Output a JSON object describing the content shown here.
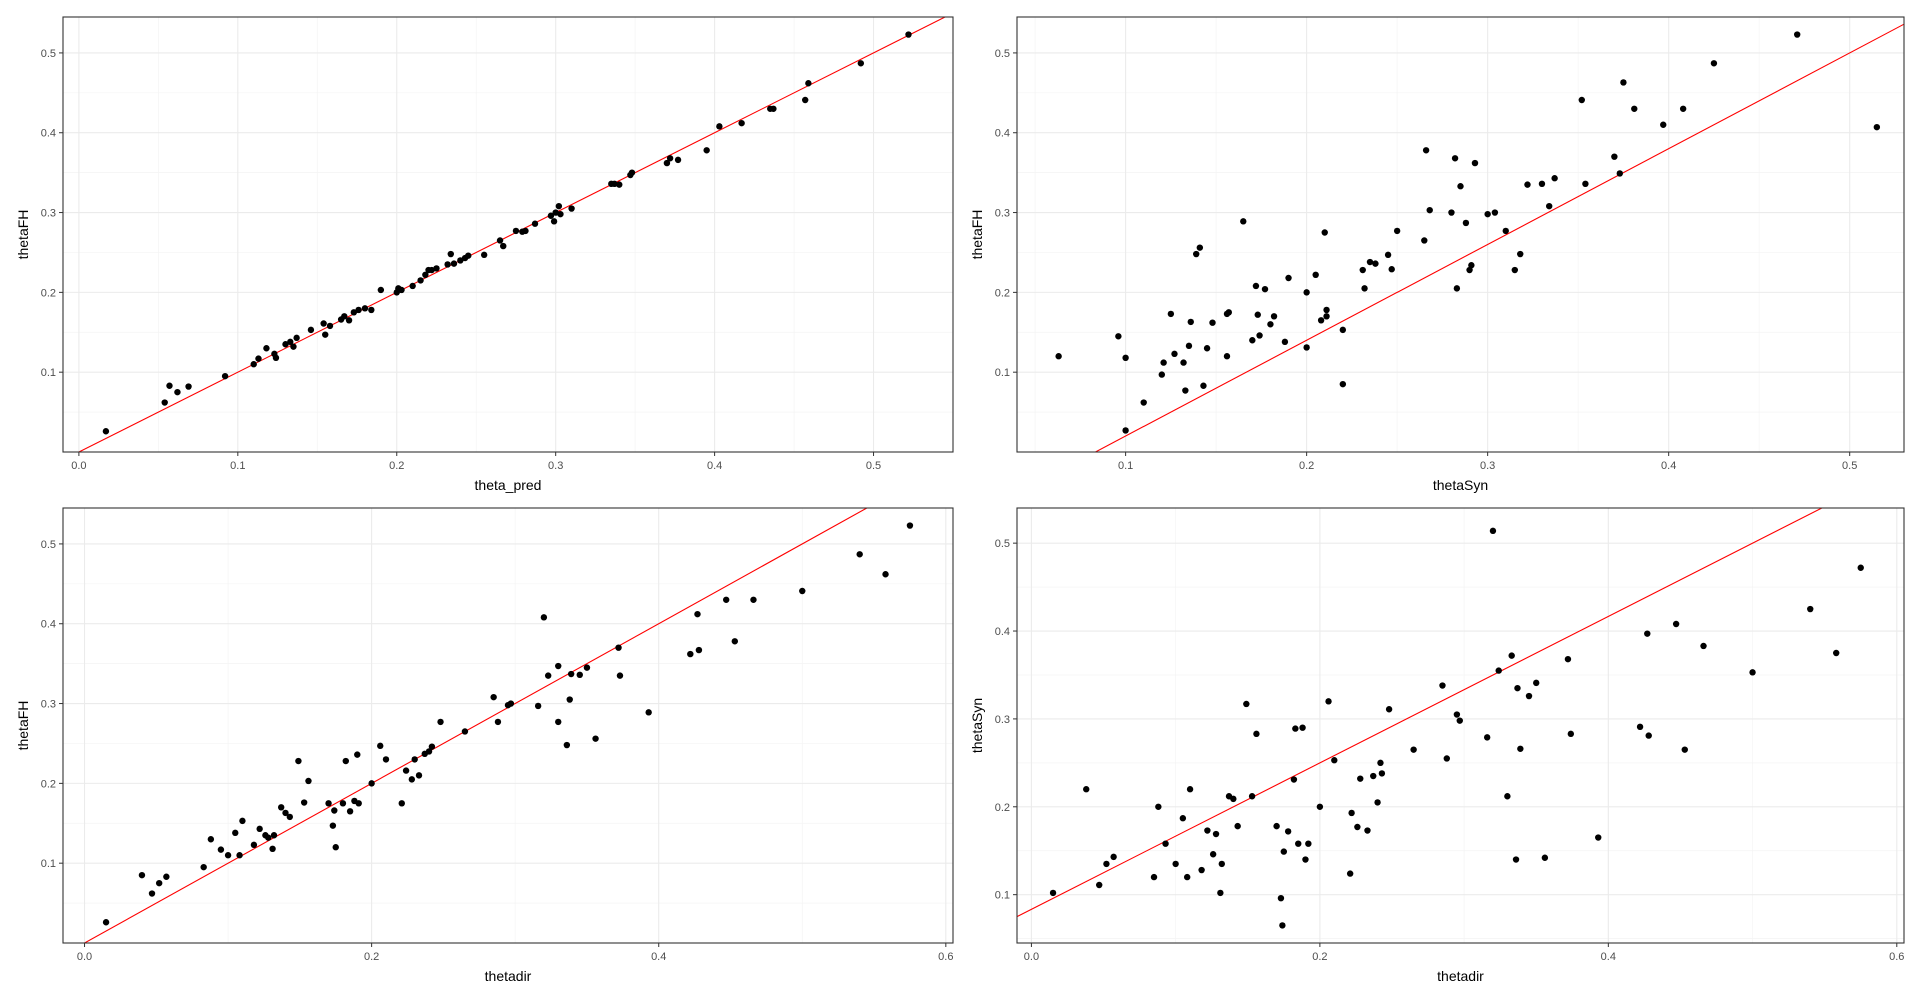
{
  "chart_data": [
    {
      "type": "scatter",
      "xlabel": "theta_pred",
      "ylabel": "thetaFH",
      "xlim": [
        -0.01,
        0.55
      ],
      "ylim": [
        0.0,
        0.545
      ],
      "xticks": [
        0.0,
        0.1,
        0.2,
        0.3,
        0.4,
        0.5
      ],
      "xtick_labels": [
        "0.0",
        "0.1",
        "0.2",
        "0.3",
        "0.4",
        "0.5"
      ],
      "yticks": [
        0.1,
        0.2,
        0.3,
        0.4,
        0.5
      ],
      "ytick_labels": [
        "0.1",
        "0.2",
        "0.3",
        "0.4",
        "0.5"
      ],
      "ref_line": {
        "intercept": 0,
        "slope": 1,
        "color": "#ff0000"
      },
      "grid": true,
      "points": [
        [
          0.017,
          0.026
        ],
        [
          0.054,
          0.062
        ],
        [
          0.057,
          0.083
        ],
        [
          0.062,
          0.075
        ],
        [
          0.069,
          0.082
        ],
        [
          0.092,
          0.095
        ],
        [
          0.11,
          0.11
        ],
        [
          0.113,
          0.117
        ],
        [
          0.118,
          0.13
        ],
        [
          0.123,
          0.123
        ],
        [
          0.124,
          0.118
        ],
        [
          0.13,
          0.135
        ],
        [
          0.133,
          0.138
        ],
        [
          0.135,
          0.132
        ],
        [
          0.137,
          0.143
        ],
        [
          0.146,
          0.153
        ],
        [
          0.154,
          0.161
        ],
        [
          0.155,
          0.147
        ],
        [
          0.158,
          0.158
        ],
        [
          0.165,
          0.166
        ],
        [
          0.167,
          0.17
        ],
        [
          0.17,
          0.165
        ],
        [
          0.173,
          0.175
        ],
        [
          0.176,
          0.178
        ],
        [
          0.18,
          0.18
        ],
        [
          0.184,
          0.178
        ],
        [
          0.19,
          0.203
        ],
        [
          0.2,
          0.2
        ],
        [
          0.201,
          0.205
        ],
        [
          0.203,
          0.203
        ],
        [
          0.21,
          0.208
        ],
        [
          0.215,
          0.215
        ],
        [
          0.218,
          0.222
        ],
        [
          0.22,
          0.228
        ],
        [
          0.222,
          0.228
        ],
        [
          0.225,
          0.23
        ],
        [
          0.232,
          0.235
        ],
        [
          0.234,
          0.248
        ],
        [
          0.236,
          0.236
        ],
        [
          0.24,
          0.24
        ],
        [
          0.243,
          0.243
        ],
        [
          0.245,
          0.246
        ],
        [
          0.255,
          0.247
        ],
        [
          0.265,
          0.265
        ],
        [
          0.267,
          0.258
        ],
        [
          0.275,
          0.277
        ],
        [
          0.279,
          0.276
        ],
        [
          0.281,
          0.277
        ],
        [
          0.287,
          0.286
        ],
        [
          0.297,
          0.296
        ],
        [
          0.299,
          0.289
        ],
        [
          0.3,
          0.3
        ],
        [
          0.302,
          0.308
        ],
        [
          0.303,
          0.298
        ],
        [
          0.31,
          0.305
        ],
        [
          0.335,
          0.336
        ],
        [
          0.337,
          0.336
        ],
        [
          0.34,
          0.335
        ],
        [
          0.347,
          0.347
        ],
        [
          0.348,
          0.35
        ],
        [
          0.37,
          0.362
        ],
        [
          0.372,
          0.368
        ],
        [
          0.377,
          0.366
        ],
        [
          0.395,
          0.378
        ],
        [
          0.403,
          0.408
        ],
        [
          0.417,
          0.412
        ],
        [
          0.435,
          0.43
        ],
        [
          0.437,
          0.43
        ],
        [
          0.457,
          0.441
        ],
        [
          0.459,
          0.462
        ],
        [
          0.492,
          0.487
        ],
        [
          0.522,
          0.523
        ]
      ]
    },
    {
      "type": "scatter",
      "xlabel": "thetaSyn",
      "ylabel": "thetaFH",
      "xlim": [
        0.04,
        0.53
      ],
      "ylim": [
        0.0,
        0.545
      ],
      "xticks": [
        0.1,
        0.2,
        0.3,
        0.4,
        0.5
      ],
      "xtick_labels": [
        "0.1",
        "0.2",
        "0.3",
        "0.4",
        "0.5"
      ],
      "yticks": [
        0.1,
        0.2,
        0.3,
        0.4,
        0.5
      ],
      "ytick_labels": [
        "0.1",
        "0.2",
        "0.3",
        "0.4",
        "0.5"
      ],
      "ref_line": {
        "intercept": -0.1,
        "slope": 1.2,
        "color": "#ff0000"
      },
      "grid": true,
      "points": [
        [
          0.063,
          0.12
        ],
        [
          0.096,
          0.145
        ],
        [
          0.1,
          0.118
        ],
        [
          0.1,
          0.027
        ],
        [
          0.11,
          0.062
        ],
        [
          0.12,
          0.097
        ],
        [
          0.121,
          0.112
        ],
        [
          0.125,
          0.173
        ],
        [
          0.127,
          0.123
        ],
        [
          0.132,
          0.112
        ],
        [
          0.133,
          0.077
        ],
        [
          0.135,
          0.133
        ],
        [
          0.136,
          0.163
        ],
        [
          0.139,
          0.248
        ],
        [
          0.141,
          0.256
        ],
        [
          0.143,
          0.083
        ],
        [
          0.145,
          0.13
        ],
        [
          0.148,
          0.162
        ],
        [
          0.156,
          0.173
        ],
        [
          0.156,
          0.12
        ],
        [
          0.157,
          0.175
        ],
        [
          0.165,
          0.289
        ],
        [
          0.17,
          0.14
        ],
        [
          0.172,
          0.208
        ],
        [
          0.173,
          0.172
        ],
        [
          0.174,
          0.146
        ],
        [
          0.177,
          0.204
        ],
        [
          0.18,
          0.16
        ],
        [
          0.182,
          0.17
        ],
        [
          0.188,
          0.138
        ],
        [
          0.19,
          0.218
        ],
        [
          0.2,
          0.2
        ],
        [
          0.2,
          0.131
        ],
        [
          0.205,
          0.222
        ],
        [
          0.208,
          0.165
        ],
        [
          0.21,
          0.275
        ],
        [
          0.211,
          0.178
        ],
        [
          0.211,
          0.17
        ],
        [
          0.22,
          0.153
        ],
        [
          0.22,
          0.085
        ],
        [
          0.231,
          0.228
        ],
        [
          0.232,
          0.205
        ],
        [
          0.235,
          0.238
        ],
        [
          0.238,
          0.236
        ],
        [
          0.245,
          0.247
        ],
        [
          0.247,
          0.229
        ],
        [
          0.25,
          0.277
        ],
        [
          0.265,
          0.265
        ],
        [
          0.266,
          0.378
        ],
        [
          0.268,
          0.303
        ],
        [
          0.28,
          0.3
        ],
        [
          0.282,
          0.368
        ],
        [
          0.283,
          0.205
        ],
        [
          0.285,
          0.333
        ],
        [
          0.288,
          0.287
        ],
        [
          0.29,
          0.228
        ],
        [
          0.291,
          0.234
        ],
        [
          0.293,
          0.362
        ],
        [
          0.3,
          0.298
        ],
        [
          0.304,
          0.3
        ],
        [
          0.31,
          0.277
        ],
        [
          0.315,
          0.228
        ],
        [
          0.318,
          0.248
        ],
        [
          0.322,
          0.335
        ],
        [
          0.33,
          0.336
        ],
        [
          0.334,
          0.308
        ],
        [
          0.337,
          0.343
        ],
        [
          0.352,
          0.441
        ],
        [
          0.354,
          0.336
        ],
        [
          0.37,
          0.37
        ],
        [
          0.373,
          0.349
        ],
        [
          0.375,
          0.463
        ],
        [
          0.381,
          0.43
        ],
        [
          0.397,
          0.41
        ],
        [
          0.408,
          0.43
        ],
        [
          0.425,
          0.487
        ],
        [
          0.471,
          0.523
        ],
        [
          0.515,
          0.407
        ]
      ]
    },
    {
      "type": "scatter",
      "xlabel": "thetadir",
      "ylabel": "thetaFH",
      "xlim": [
        -0.015,
        0.605
      ],
      "ylim": [
        0.0,
        0.545
      ],
      "xticks": [
        0.0,
        0.2,
        0.4,
        0.6
      ],
      "xtick_labels": [
        "0.0",
        "0.2",
        "0.4",
        "0.6"
      ],
      "yticks": [
        0.1,
        0.2,
        0.3,
        0.4,
        0.5
      ],
      "ytick_labels": [
        "0.1",
        "0.2",
        "0.3",
        "0.4",
        "0.5"
      ],
      "ref_line": {
        "intercept": 0,
        "slope": 1,
        "color": "#ff0000"
      },
      "grid": true,
      "points": [
        [
          0.015,
          0.026
        ],
        [
          0.04,
          0.085
        ],
        [
          0.047,
          0.062
        ],
        [
          0.052,
          0.075
        ],
        [
          0.057,
          0.083
        ],
        [
          0.083,
          0.095
        ],
        [
          0.088,
          0.13
        ],
        [
          0.095,
          0.117
        ],
        [
          0.1,
          0.11
        ],
        [
          0.105,
          0.138
        ],
        [
          0.108,
          0.11
        ],
        [
          0.11,
          0.153
        ],
        [
          0.118,
          0.123
        ],
        [
          0.122,
          0.143
        ],
        [
          0.126,
          0.135
        ],
        [
          0.128,
          0.132
        ],
        [
          0.131,
          0.118
        ],
        [
          0.132,
          0.135
        ],
        [
          0.137,
          0.17
        ],
        [
          0.14,
          0.163
        ],
        [
          0.143,
          0.158
        ],
        [
          0.149,
          0.228
        ],
        [
          0.153,
          0.176
        ],
        [
          0.156,
          0.203
        ],
        [
          0.17,
          0.175
        ],
        [
          0.173,
          0.147
        ],
        [
          0.174,
          0.166
        ],
        [
          0.175,
          0.12
        ],
        [
          0.18,
          0.175
        ],
        [
          0.182,
          0.228
        ],
        [
          0.185,
          0.165
        ],
        [
          0.188,
          0.178
        ],
        [
          0.19,
          0.236
        ],
        [
          0.191,
          0.175
        ],
        [
          0.2,
          0.2
        ],
        [
          0.206,
          0.247
        ],
        [
          0.21,
          0.23
        ],
        [
          0.221,
          0.175
        ],
        [
          0.224,
          0.216
        ],
        [
          0.228,
          0.205
        ],
        [
          0.23,
          0.23
        ],
        [
          0.233,
          0.21
        ],
        [
          0.237,
          0.237
        ],
        [
          0.24,
          0.24
        ],
        [
          0.242,
          0.246
        ],
        [
          0.248,
          0.277
        ],
        [
          0.265,
          0.265
        ],
        [
          0.285,
          0.308
        ],
        [
          0.288,
          0.277
        ],
        [
          0.295,
          0.298
        ],
        [
          0.297,
          0.3
        ],
        [
          0.316,
          0.297
        ],
        [
          0.32,
          0.408
        ],
        [
          0.323,
          0.335
        ],
        [
          0.33,
          0.347
        ],
        [
          0.33,
          0.277
        ],
        [
          0.336,
          0.248
        ],
        [
          0.338,
          0.305
        ],
        [
          0.339,
          0.337
        ],
        [
          0.345,
          0.336
        ],
        [
          0.35,
          0.345
        ],
        [
          0.356,
          0.256
        ],
        [
          0.372,
          0.37
        ],
        [
          0.373,
          0.335
        ],
        [
          0.393,
          0.289
        ],
        [
          0.422,
          0.362
        ],
        [
          0.427,
          0.412
        ],
        [
          0.428,
          0.367
        ],
        [
          0.447,
          0.43
        ],
        [
          0.453,
          0.378
        ],
        [
          0.466,
          0.43
        ],
        [
          0.5,
          0.441
        ],
        [
          0.54,
          0.487
        ],
        [
          0.558,
          0.462
        ],
        [
          0.575,
          0.523
        ]
      ]
    },
    {
      "type": "scatter",
      "xlabel": "thetadir",
      "ylabel": "thetaSyn",
      "xlim": [
        -0.01,
        0.605
      ],
      "ylim": [
        0.045,
        0.54
      ],
      "xticks": [
        0.0,
        0.2,
        0.4,
        0.6
      ],
      "xtick_labels": [
        "0.0",
        "0.2",
        "0.4",
        "0.6"
      ],
      "yticks": [
        0.1,
        0.2,
        0.3,
        0.4,
        0.5
      ],
      "ytick_labels": [
        "0.1",
        "0.2",
        "0.3",
        "0.4",
        "0.5"
      ],
      "ref_line": {
        "intercept": 0.0833,
        "slope": 0.8333,
        "color": "#ff0000"
      },
      "grid": true,
      "points": [
        [
          0.015,
          0.102
        ],
        [
          0.038,
          0.22
        ],
        [
          0.047,
          0.111
        ],
        [
          0.052,
          0.135
        ],
        [
          0.057,
          0.143
        ],
        [
          0.085,
          0.12
        ],
        [
          0.088,
          0.2
        ],
        [
          0.093,
          0.158
        ],
        [
          0.1,
          0.135
        ],
        [
          0.105,
          0.187
        ],
        [
          0.108,
          0.12
        ],
        [
          0.11,
          0.22
        ],
        [
          0.118,
          0.128
        ],
        [
          0.122,
          0.173
        ],
        [
          0.126,
          0.146
        ],
        [
          0.128,
          0.169
        ],
        [
          0.131,
          0.102
        ],
        [
          0.132,
          0.135
        ],
        [
          0.137,
          0.212
        ],
        [
          0.14,
          0.209
        ],
        [
          0.143,
          0.178
        ],
        [
          0.149,
          0.317
        ],
        [
          0.153,
          0.212
        ],
        [
          0.156,
          0.283
        ],
        [
          0.17,
          0.178
        ],
        [
          0.173,
          0.096
        ],
        [
          0.174,
          0.065
        ],
        [
          0.175,
          0.149
        ],
        [
          0.178,
          0.172
        ],
        [
          0.182,
          0.231
        ],
        [
          0.183,
          0.289
        ],
        [
          0.185,
          0.158
        ],
        [
          0.188,
          0.29
        ],
        [
          0.19,
          0.14
        ],
        [
          0.192,
          0.158
        ],
        [
          0.2,
          0.2
        ],
        [
          0.206,
          0.32
        ],
        [
          0.21,
          0.253
        ],
        [
          0.221,
          0.124
        ],
        [
          0.222,
          0.193
        ],
        [
          0.226,
          0.177
        ],
        [
          0.228,
          0.232
        ],
        [
          0.233,
          0.173
        ],
        [
          0.237,
          0.235
        ],
        [
          0.24,
          0.205
        ],
        [
          0.242,
          0.25
        ],
        [
          0.243,
          0.238
        ],
        [
          0.248,
          0.311
        ],
        [
          0.265,
          0.265
        ],
        [
          0.285,
          0.338
        ],
        [
          0.288,
          0.255
        ],
        [
          0.295,
          0.305
        ],
        [
          0.297,
          0.298
        ],
        [
          0.316,
          0.279
        ],
        [
          0.32,
          0.514
        ],
        [
          0.324,
          0.355
        ],
        [
          0.33,
          0.212
        ],
        [
          0.333,
          0.372
        ],
        [
          0.336,
          0.14
        ],
        [
          0.337,
          0.335
        ],
        [
          0.339,
          0.266
        ],
        [
          0.345,
          0.326
        ],
        [
          0.35,
          0.341
        ],
        [
          0.356,
          0.142
        ],
        [
          0.372,
          0.368
        ],
        [
          0.374,
          0.283
        ],
        [
          0.393,
          0.165
        ],
        [
          0.422,
          0.291
        ],
        [
          0.427,
          0.397
        ],
        [
          0.428,
          0.281
        ],
        [
          0.447,
          0.408
        ],
        [
          0.453,
          0.265
        ],
        [
          0.466,
          0.383
        ],
        [
          0.5,
          0.353
        ],
        [
          0.54,
          0.425
        ],
        [
          0.558,
          0.375
        ],
        [
          0.575,
          0.472
        ]
      ]
    }
  ]
}
